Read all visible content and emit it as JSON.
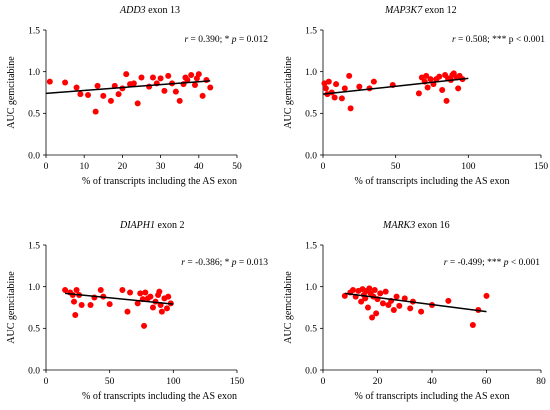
{
  "figure": {
    "colors": {
      "point": "#ff0000",
      "trendline": "#000000",
      "axis": "#000000"
    }
  },
  "chart_data": [
    {
      "type": "scatter",
      "title_italic": "ADD3",
      "title_rest": " exon 13",
      "stat": {
        "r_symbol": "r",
        "r_text": " = 0.390; * ",
        "p_symbol": "p",
        "p_text": " = 0.012"
      },
      "xlabel": "% of transcripts including the AS exon",
      "ylabel": "AUC gemcitabine",
      "xlim": [
        0,
        50
      ],
      "ylim": [
        0,
        1.5
      ],
      "xticks": [
        "0",
        "10",
        "20",
        "30",
        "40",
        "50"
      ],
      "yticks": [
        "0.0",
        "0.5",
        "1.0",
        "1.5"
      ],
      "trendline": {
        "x": [
          0,
          43
        ],
        "y": [
          0.74,
          0.89
        ]
      },
      "points": [
        {
          "x": 1,
          "y": 0.88
        },
        {
          "x": 5,
          "y": 0.87
        },
        {
          "x": 8,
          "y": 0.81
        },
        {
          "x": 9,
          "y": 0.73
        },
        {
          "x": 11,
          "y": 0.72
        },
        {
          "x": 13,
          "y": 0.52
        },
        {
          "x": 13.5,
          "y": 0.83
        },
        {
          "x": 15,
          "y": 0.71
        },
        {
          "x": 17,
          "y": 0.65
        },
        {
          "x": 18,
          "y": 0.83
        },
        {
          "x": 19,
          "y": 0.73
        },
        {
          "x": 20,
          "y": 0.8
        },
        {
          "x": 21,
          "y": 0.97
        },
        {
          "x": 22,
          "y": 0.85
        },
        {
          "x": 23,
          "y": 0.86
        },
        {
          "x": 24,
          "y": 0.62
        },
        {
          "x": 25,
          "y": 0.93
        },
        {
          "x": 27,
          "y": 0.82
        },
        {
          "x": 28,
          "y": 0.93
        },
        {
          "x": 29,
          "y": 0.86
        },
        {
          "x": 30,
          "y": 0.92
        },
        {
          "x": 31,
          "y": 0.77
        },
        {
          "x": 32,
          "y": 0.95
        },
        {
          "x": 33,
          "y": 0.86
        },
        {
          "x": 34,
          "y": 0.76
        },
        {
          "x": 35,
          "y": 0.65
        },
        {
          "x": 36,
          "y": 0.85
        },
        {
          "x": 36.5,
          "y": 0.93
        },
        {
          "x": 37,
          "y": 0.9
        },
        {
          "x": 38,
          "y": 0.96
        },
        {
          "x": 39,
          "y": 0.84
        },
        {
          "x": 39.5,
          "y": 0.92
        },
        {
          "x": 40,
          "y": 0.97
        },
        {
          "x": 41,
          "y": 0.71
        },
        {
          "x": 42,
          "y": 0.9
        },
        {
          "x": 43,
          "y": 0.81
        }
      ]
    },
    {
      "type": "scatter",
      "title_italic": "MAP3K7",
      "title_rest": " exon 12",
      "stat": {
        "r_symbol": "r",
        "r_text": " = 0.508; *** p < 0.001",
        "p_symbol": "",
        "p_text": ""
      },
      "xlabel": "% of transcripts including the AS exon",
      "ylabel": "AUC gemcitabine",
      "xlim": [
        0,
        150
      ],
      "ylim": [
        0,
        1.5
      ],
      "xticks": [
        "0",
        "50",
        "100",
        "150"
      ],
      "yticks": [
        "0.0",
        "0.5",
        "1.0",
        "1.5"
      ],
      "trendline": {
        "x": [
          0,
          100
        ],
        "y": [
          0.73,
          0.92
        ]
      },
      "points": [
        {
          "x": 1,
          "y": 0.86
        },
        {
          "x": 2,
          "y": 0.8
        },
        {
          "x": 3,
          "y": 0.73
        },
        {
          "x": 4,
          "y": 0.88
        },
        {
          "x": 6,
          "y": 0.75
        },
        {
          "x": 8,
          "y": 0.69
        },
        {
          "x": 9,
          "y": 0.85
        },
        {
          "x": 13,
          "y": 0.68
        },
        {
          "x": 15,
          "y": 0.8
        },
        {
          "x": 18,
          "y": 0.95
        },
        {
          "x": 19,
          "y": 0.56
        },
        {
          "x": 25,
          "y": 0.82
        },
        {
          "x": 32,
          "y": 0.8
        },
        {
          "x": 35,
          "y": 0.88
        },
        {
          "x": 48,
          "y": 0.84
        },
        {
          "x": 66,
          "y": 0.74
        },
        {
          "x": 68,
          "y": 0.93
        },
        {
          "x": 70,
          "y": 0.88
        },
        {
          "x": 71,
          "y": 0.95
        },
        {
          "x": 72,
          "y": 0.81
        },
        {
          "x": 74,
          "y": 0.91
        },
        {
          "x": 76,
          "y": 0.85
        },
        {
          "x": 78,
          "y": 0.91
        },
        {
          "x": 80,
          "y": 0.94
        },
        {
          "x": 82,
          "y": 0.78
        },
        {
          "x": 84,
          "y": 0.96
        },
        {
          "x": 85,
          "y": 0.65
        },
        {
          "x": 86,
          "y": 0.92
        },
        {
          "x": 88,
          "y": 0.9
        },
        {
          "x": 89,
          "y": 0.96
        },
        {
          "x": 90,
          "y": 0.98
        },
        {
          "x": 92,
          "y": 0.93
        },
        {
          "x": 93,
          "y": 0.8
        },
        {
          "x": 94,
          "y": 0.95
        },
        {
          "x": 96,
          "y": 0.91
        }
      ]
    },
    {
      "type": "scatter",
      "title_italic": "DIAPH1",
      "title_rest": " exon 2",
      "stat": {
        "r_symbol": "r",
        "r_text": " = -0.386; * ",
        "p_symbol": "p",
        "p_text": " = 0.013"
      },
      "xlabel": "% of transcripts including the AS exon",
      "ylabel": "AUC gemcitabine",
      "xlim": [
        0,
        150
      ],
      "ylim": [
        0,
        1.5
      ],
      "xticks": [
        "0",
        "50",
        "100",
        "150"
      ],
      "yticks": [
        "0.0",
        "0.5",
        "1.0",
        "1.5"
      ],
      "trendline": {
        "x": [
          15,
          100
        ],
        "y": [
          0.92,
          0.79
        ]
      },
      "points": [
        {
          "x": 15,
          "y": 0.96
        },
        {
          "x": 19,
          "y": 0.93
        },
        {
          "x": 21,
          "y": 0.9
        },
        {
          "x": 22,
          "y": 0.82
        },
        {
          "x": 23,
          "y": 0.66
        },
        {
          "x": 24,
          "y": 0.96
        },
        {
          "x": 26,
          "y": 0.9
        },
        {
          "x": 28,
          "y": 0.78
        },
        {
          "x": 35,
          "y": 0.78
        },
        {
          "x": 38,
          "y": 0.87
        },
        {
          "x": 43,
          "y": 0.96
        },
        {
          "x": 45,
          "y": 0.88
        },
        {
          "x": 50,
          "y": 0.79
        },
        {
          "x": 60,
          "y": 0.96
        },
        {
          "x": 64,
          "y": 0.7
        },
        {
          "x": 66,
          "y": 0.93
        },
        {
          "x": 72,
          "y": 0.8
        },
        {
          "x": 74,
          "y": 0.92
        },
        {
          "x": 76,
          "y": 0.85
        },
        {
          "x": 77,
          "y": 0.53
        },
        {
          "x": 78,
          "y": 0.93
        },
        {
          "x": 80,
          "y": 0.86
        },
        {
          "x": 82,
          "y": 0.88
        },
        {
          "x": 84,
          "y": 0.75
        },
        {
          "x": 86,
          "y": 0.82
        },
        {
          "x": 88,
          "y": 0.9
        },
        {
          "x": 89,
          "y": 0.94
        },
        {
          "x": 90,
          "y": 0.78
        },
        {
          "x": 91,
          "y": 0.7
        },
        {
          "x": 93,
          "y": 0.86
        },
        {
          "x": 95,
          "y": 0.74
        },
        {
          "x": 96,
          "y": 0.88
        },
        {
          "x": 98,
          "y": 0.8
        }
      ]
    },
    {
      "type": "scatter",
      "title_italic": "MARK3",
      "title_rest": " exon 16",
      "stat": {
        "r_symbol": "r",
        "r_text": " = -0.499; *** ",
        "p_symbol": "p",
        "p_text": " < 0.001"
      },
      "xlabel": "% of transcripts including the AS exon",
      "ylabel": "AUC gemcitabine",
      "xlim": [
        0,
        80
      ],
      "ylim": [
        0,
        1.5
      ],
      "xticks": [
        "0",
        "20",
        "40",
        "60",
        "80"
      ],
      "yticks": [
        "0.0",
        "0.5",
        "1.0",
        "1.5"
      ],
      "trendline": {
        "x": [
          8,
          60
        ],
        "y": [
          0.92,
          0.7
        ]
      },
      "points": [
        {
          "x": 8,
          "y": 0.89
        },
        {
          "x": 10,
          "y": 0.93
        },
        {
          "x": 11,
          "y": 0.96
        },
        {
          "x": 12,
          "y": 0.88
        },
        {
          "x": 13,
          "y": 0.95
        },
        {
          "x": 14,
          "y": 0.82
        },
        {
          "x": 14.5,
          "y": 0.97
        },
        {
          "x": 15,
          "y": 0.9
        },
        {
          "x": 15.5,
          "y": 0.86
        },
        {
          "x": 16,
          "y": 0.95
        },
        {
          "x": 16.5,
          "y": 0.75
        },
        {
          "x": 17,
          "y": 0.98
        },
        {
          "x": 17.5,
          "y": 0.92
        },
        {
          "x": 18,
          "y": 0.63
        },
        {
          "x": 18.5,
          "y": 0.88
        },
        {
          "x": 19,
          "y": 0.96
        },
        {
          "x": 19.5,
          "y": 0.68
        },
        {
          "x": 20,
          "y": 0.85
        },
        {
          "x": 21,
          "y": 0.92
        },
        {
          "x": 22,
          "y": 0.8
        },
        {
          "x": 23,
          "y": 0.94
        },
        {
          "x": 24,
          "y": 0.78
        },
        {
          "x": 25,
          "y": 0.83
        },
        {
          "x": 26,
          "y": 0.72
        },
        {
          "x": 27,
          "y": 0.88
        },
        {
          "x": 28,
          "y": 0.77
        },
        {
          "x": 30,
          "y": 0.86
        },
        {
          "x": 32,
          "y": 0.74
        },
        {
          "x": 33,
          "y": 0.82
        },
        {
          "x": 36,
          "y": 0.7
        },
        {
          "x": 40,
          "y": 0.78
        },
        {
          "x": 46,
          "y": 0.83
        },
        {
          "x": 55,
          "y": 0.54
        },
        {
          "x": 57,
          "y": 0.72
        },
        {
          "x": 60,
          "y": 0.89
        }
      ]
    }
  ]
}
